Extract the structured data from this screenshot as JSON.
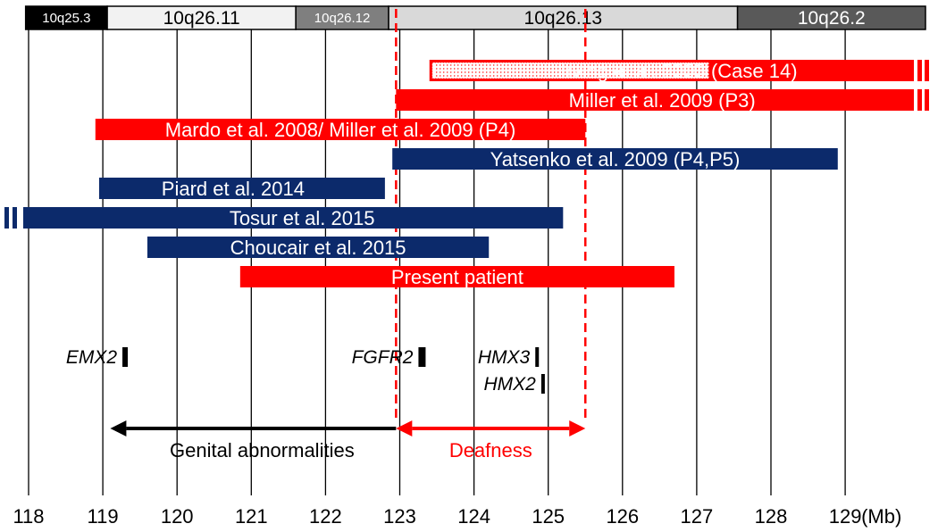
{
  "colors": {
    "red": "#ff0000",
    "navy": "#0c2a6b",
    "black": "#000000",
    "grid": "#000000"
  },
  "bands": [
    {
      "label": "10q25.3",
      "start": 117.96,
      "end": 119.06,
      "fill": "#000000",
      "text_color": "#ffffff",
      "small": true
    },
    {
      "label": "10q26.11",
      "start": 119.06,
      "end": 121.6,
      "fill": "#f2f2f2",
      "text_color": "#000000",
      "small": false
    },
    {
      "label": "10q26.12",
      "start": 121.6,
      "end": 122.85,
      "fill": "#7f7f7f",
      "text_color": "#ffffff",
      "small": true
    },
    {
      "label": "10q26.13",
      "start": 122.85,
      "end": 127.55,
      "fill": "#d9d9d9",
      "text_color": "#000000",
      "small": false
    },
    {
      "label": "10q26.2",
      "start": 127.55,
      "end": 130.2,
      "fill": "#595959",
      "text_color": "#ffffff",
      "small": false
    }
  ],
  "axis": {
    "ticks": [
      "118",
      "119",
      "120",
      "121",
      "122",
      "123",
      "124",
      "125",
      "126",
      "127",
      "128",
      "129"
    ],
    "unit": "(Mb)",
    "min": 117.96,
    "max": 130.2
  },
  "studies": [
    {
      "label": "Irving et al. 2003  (Case 14)",
      "start": 123.4,
      "end": 129.9,
      "row": 0,
      "color": "red",
      "dotted_end": 127.2,
      "break": true
    },
    {
      "label": "Miller et al. 2009 (P3)",
      "start": 122.95,
      "end": 129.9,
      "row": 1,
      "color": "red",
      "break": true
    },
    {
      "label": "Mardo et al. 2008/ Miller et al. 2009 (P4)",
      "start": 118.9,
      "end": 125.5,
      "row": 2,
      "color": "red"
    },
    {
      "label": "Yatsenko et al. 2009 (P4,P5)",
      "start": 122.9,
      "end": 128.9,
      "row": 3,
      "color": "navy"
    },
    {
      "label": "Piard et al. 2014",
      "start": 118.95,
      "end": 122.8,
      "row": 4,
      "color": "navy"
    },
    {
      "label": "Tosur et al. 2015",
      "start": 117.7,
      "end": 125.2,
      "row": 5,
      "color": "navy",
      "break_start": true
    },
    {
      "label": "Choucair et al. 2015",
      "start": 119.6,
      "end": 124.2,
      "row": 6,
      "color": "navy"
    },
    {
      "label": "Present patient",
      "start": 120.85,
      "end": 126.7,
      "row": 7,
      "color": "red"
    }
  ],
  "genes": [
    {
      "name": "EMX2",
      "pos": 119.3,
      "row": 0
    },
    {
      "name": "FGFR2",
      "pos": 123.3,
      "row": 0
    },
    {
      "name": "HMX3",
      "pos": 124.85,
      "row": 0
    },
    {
      "name": "HMX2",
      "pos": 124.93,
      "row": 1
    }
  ],
  "boundaries": [
    122.95,
    125.5
  ],
  "regions": [
    {
      "label": "Genital abnormalities",
      "from": 122.95,
      "to": 119.1,
      "color": "black",
      "arrow_both": false
    },
    {
      "label": "Deafness",
      "from": 122.95,
      "to": 125.5,
      "color": "red",
      "arrow_both": true
    }
  ]
}
